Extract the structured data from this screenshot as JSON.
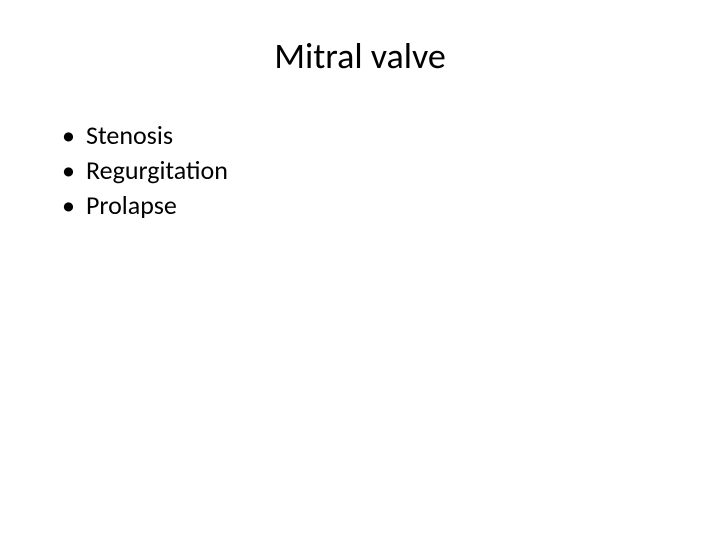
{
  "slide": {
    "title": "Mitral valve",
    "bullets": [
      "Stenosis",
      "Regurgitation",
      "Prolapse"
    ],
    "styling": {
      "background_color": "#ffffff",
      "text_color": "#000000",
      "title_fontsize": 36,
      "title_fontweight": 400,
      "title_align": "center",
      "body_fontsize": 26,
      "font_family": "Calibri, Arial, sans-serif",
      "bullet_marker": "•"
    }
  }
}
